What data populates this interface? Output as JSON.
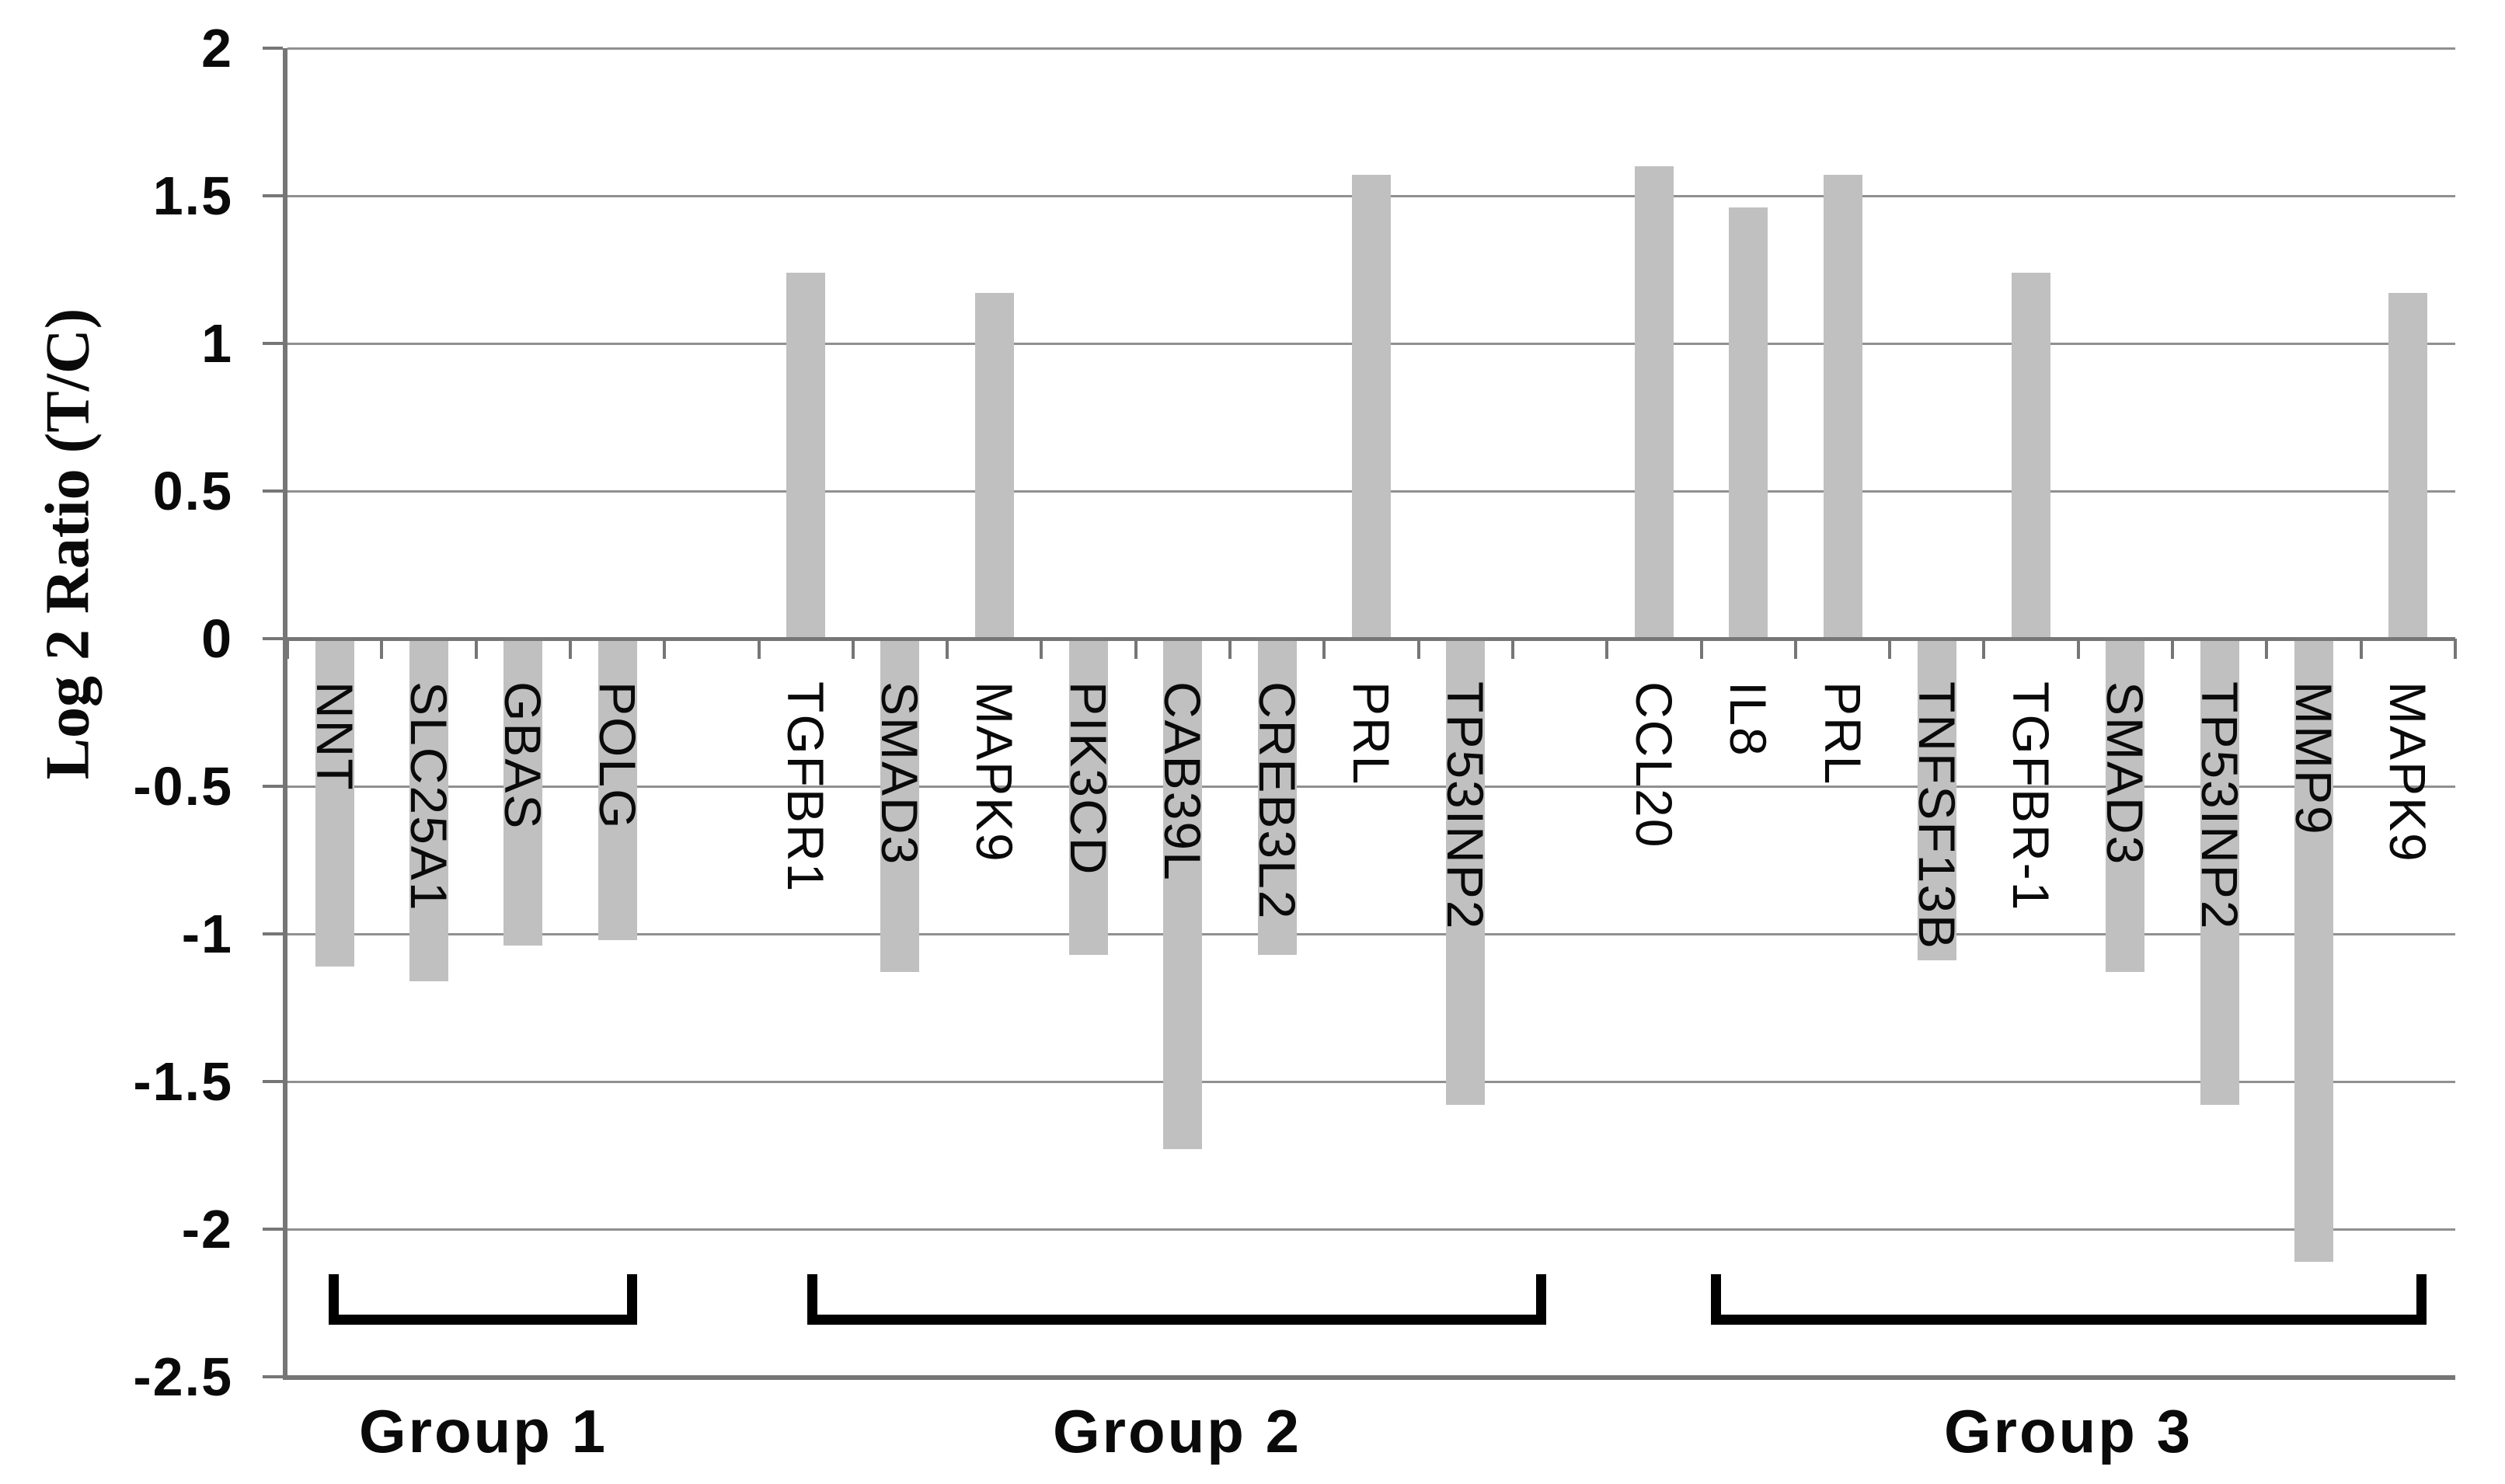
{
  "chart_data": {
    "type": "bar",
    "title": "",
    "ylabel": "Log 2 Ratio (T/C)",
    "xlabel": "",
    "ylim": [
      -2.5,
      2
    ],
    "ytick_values": [
      2,
      1.5,
      1,
      0.5,
      0,
      -0.5,
      -1,
      -1.5,
      -2,
      -2.5
    ],
    "ytick_labels": [
      "2",
      "1.5",
      "1",
      "0.5",
      "0",
      "-0.5",
      "-1",
      "-1.5",
      "-2",
      "-2.5"
    ],
    "grid": true,
    "legend": false,
    "bar_color": "#c0c0c0",
    "gridline_color": "#909090",
    "axis_color": "#767676",
    "bracket_color": "#000000",
    "groups": [
      {
        "label": "Group 1",
        "items": [
          {
            "gene": "NNT",
            "value": -1.11
          },
          {
            "gene": "SLC25A1",
            "value": -1.16
          },
          {
            "gene": "GBAS",
            "value": -1.04
          },
          {
            "gene": "POLG",
            "value": -1.02
          }
        ]
      },
      {
        "label": "Group 2",
        "items": [
          {
            "gene": "TGFBR1",
            "value": 1.24
          },
          {
            "gene": "SMAD3",
            "value": -1.13
          },
          {
            "gene": "MAPK9",
            "value": 1.17
          },
          {
            "gene": "PIK3CD",
            "value": -1.07
          },
          {
            "gene": "CAB39L",
            "value": -1.73
          },
          {
            "gene": "CREB3L2",
            "value": -1.07
          },
          {
            "gene": "PRL",
            "value": 1.57
          },
          {
            "gene": "TP53INP2",
            "value": -1.58
          }
        ]
      },
      {
        "label": "Group 3",
        "items": [
          {
            "gene": "CCL20",
            "value": 1.6
          },
          {
            "gene": "IL8",
            "value": 1.46
          },
          {
            "gene": "PRL",
            "value": 1.57
          },
          {
            "gene": "TNFSF13B",
            "value": -1.09
          },
          {
            "gene": "TGFBR-1",
            "value": 1.24
          },
          {
            "gene": "SMAD3",
            "value": -1.13
          },
          {
            "gene": "TP53INP2",
            "value": -1.58
          },
          {
            "gene": "MMP9",
            "value": -2.11
          },
          {
            "gene": "MAPK9",
            "value": 1.17
          }
        ]
      }
    ]
  }
}
